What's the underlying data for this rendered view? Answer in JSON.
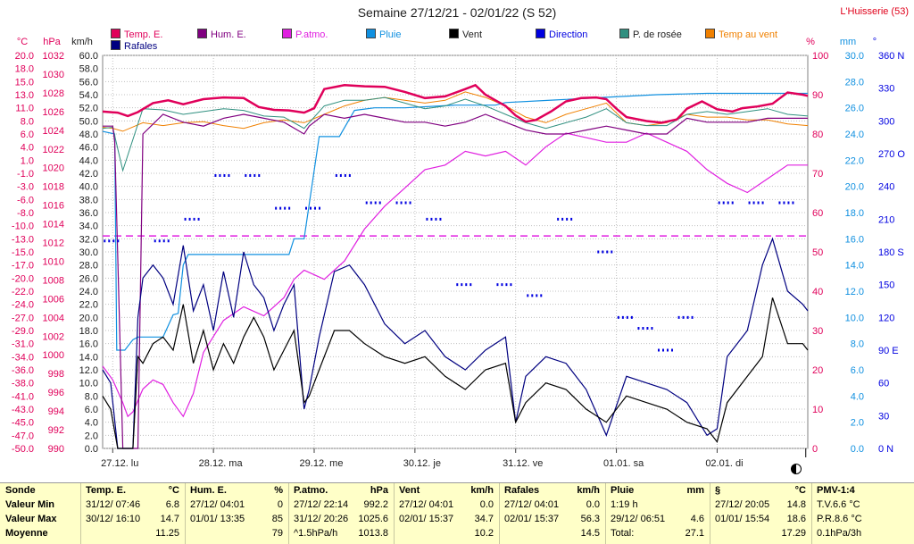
{
  "title": "Semaine 27/12/21 - 02/01/22 (S 52)",
  "station": "L'Huisserie (53)",
  "legend": [
    {
      "label": "Temp. E.",
      "color": "#e0005a"
    },
    {
      "label": "Hum. E.",
      "color": "#800080"
    },
    {
      "label": "P.atmo.",
      "color": "#e020e0"
    },
    {
      "label": "Pluie",
      "color": "#1090e0"
    },
    {
      "label": "Vent",
      "color": "#000000"
    },
    {
      "label": "Direction",
      "color": "#0000e0"
    },
    {
      "label": "P. de rosée",
      "color": "#309080"
    },
    {
      "label": "Temp au vent",
      "color": "#f08000"
    },
    {
      "label": "Rafales",
      "color": "#000080"
    }
  ],
  "axes": {
    "temp": {
      "unit": "°C",
      "ticks": [
        "20.0",
        "18.0",
        "15.0",
        "13.0",
        "11.0",
        "8.0",
        "6.0",
        "4.0",
        "1.0",
        "-1.0",
        "-3.0",
        "-6.0",
        "-8.0",
        "-10.0",
        "-13.0",
        "-15.0",
        "-17.0",
        "-20.0",
        "-22.0",
        "-24.0",
        "-27.0",
        "-29.0",
        "-31.0",
        "-34.0",
        "-36.0",
        "-38.0",
        "-41.0",
        "-43.0",
        "-45.0",
        "-47.0",
        "-50.0"
      ]
    },
    "pressure": {
      "unit": "hPa",
      "ticks": [
        "1032",
        "1030",
        "1028",
        "1026",
        "1024",
        "1022",
        "1020",
        "1018",
        "1016",
        "1014",
        "1012",
        "1010",
        "1008",
        "1006",
        "1004",
        "1002",
        "1000",
        "998",
        "996",
        "994",
        "992",
        "990"
      ]
    },
    "wind": {
      "unit": "km/h",
      "ticks": [
        "60.0",
        "58.0",
        "56.0",
        "54.0",
        "52.0",
        "50.0",
        "48.0",
        "46.0",
        "44.0",
        "42.0",
        "40.0",
        "38.0",
        "36.0",
        "34.0",
        "32.0",
        "30.0",
        "28.0",
        "26.0",
        "24.0",
        "22.0",
        "20.0",
        "18.0",
        "16.0",
        "14.0",
        "12.0",
        "10.0",
        "8.0",
        "6.0",
        "4.0",
        "2.0",
        "0.0"
      ]
    },
    "humidity": {
      "unit": "%",
      "ticks": [
        "100",
        "90",
        "80",
        "70",
        "60",
        "50",
        "40",
        "30",
        "20",
        "10",
        "0"
      ]
    },
    "rain": {
      "unit": "mm",
      "ticks": [
        "30.0",
        "28.0",
        "26.0",
        "24.0",
        "22.0",
        "20.0",
        "18.0",
        "16.0",
        "14.0",
        "12.0",
        "10.0",
        "8.0",
        "6.0",
        "4.0",
        "2.0",
        "0.0"
      ]
    },
    "direction": {
      "unit": "°",
      "ticks": [
        "360 N",
        "330",
        "300",
        "270 O",
        "240",
        "210",
        "180 S",
        "150",
        "120",
        "90 E",
        "60",
        "30",
        "0 N"
      ]
    },
    "days": [
      "27.12. lu",
      "28.12. ma",
      "29.12. me",
      "30.12. je",
      "31.12. ve",
      "01.01. sa",
      "02.01. di"
    ]
  },
  "chart_data": {
    "type": "line",
    "x_unit": "day index (0 = 27.12. lu)",
    "x_range": [
      0,
      7
    ],
    "series": [
      {
        "name": "Temp. E.",
        "axis": "°C",
        "x": [
          0,
          0.15,
          0.25,
          0.35,
          0.5,
          0.65,
          0.8,
          1.0,
          1.2,
          1.4,
          1.55,
          1.7,
          1.85,
          2.0,
          2.1,
          2.2,
          2.4,
          2.6,
          2.8,
          3.0,
          3.2,
          3.4,
          3.6,
          3.7,
          3.8,
          3.9,
          4.0,
          4.1,
          4.2,
          4.3,
          4.45,
          4.6,
          4.75,
          4.9,
          5.0,
          5.1,
          5.2,
          5.4,
          5.55,
          5.7,
          5.8,
          5.95,
          6.1,
          6.25,
          6.35,
          6.5,
          6.65,
          6.8,
          6.95,
          7.0
        ],
        "values": [
          10.0,
          9.8,
          9.2,
          9.9,
          11.5,
          12.0,
          11.3,
          12.2,
          12.5,
          12.4,
          10.8,
          10.3,
          10.2,
          9.8,
          10.6,
          14.0,
          14.7,
          14.5,
          14.4,
          13.5,
          12.4,
          12.7,
          14.0,
          14.7,
          13.0,
          12.0,
          11.0,
          9.3,
          8.2,
          8.5,
          10.0,
          11.8,
          12.4,
          12.5,
          12.2,
          10.5,
          9.0,
          8.3,
          8.0,
          8.6,
          10.5,
          11.8,
          10.4,
          10.0,
          10.6,
          10.9,
          11.4,
          13.4,
          13.0,
          12.8
        ]
      },
      {
        "name": "Hum. E.",
        "axis": "%",
        "x": [
          0,
          0.1,
          0.12,
          0.2,
          0.3,
          0.35,
          0.4,
          0.6,
          0.8,
          1.0,
          1.2,
          1.4,
          1.6,
          1.8,
          2.0,
          2.05,
          2.2,
          2.4,
          2.6,
          2.8,
          3.0,
          3.2,
          3.4,
          3.6,
          3.8,
          4.0,
          4.2,
          4.4,
          4.6,
          4.8,
          5.0,
          5.2,
          5.4,
          5.6,
          5.8,
          6.0,
          6.2,
          6.4,
          6.6,
          6.8,
          7.0
        ],
        "values": [
          82,
          82,
          78,
          0,
          0,
          0,
          80,
          85,
          83,
          82,
          84,
          85,
          84,
          83,
          80,
          82,
          85,
          84,
          85,
          84,
          83,
          83,
          82,
          83,
          85,
          83,
          81,
          80,
          80,
          81,
          82,
          81,
          80,
          80,
          84,
          83,
          83,
          83,
          84,
          84,
          84
        ]
      },
      {
        "name": "P.atmo.",
        "axis": "hPa",
        "x": [
          0,
          0.1,
          0.2,
          0.25,
          0.3,
          0.4,
          0.5,
          0.6,
          0.7,
          0.8,
          0.9,
          1.0,
          1.2,
          1.4,
          1.6,
          1.8,
          1.9,
          2.0,
          2.1,
          2.2,
          2.4,
          2.6,
          2.8,
          3.0,
          3.2,
          3.4,
          3.6,
          3.8,
          4.0,
          4.2,
          4.4,
          4.6,
          4.8,
          5.0,
          5.2,
          5.4,
          5.5,
          5.6,
          5.8,
          6.0,
          6.2,
          6.4,
          6.6,
          6.8,
          7.0
        ],
        "values": [
          999.0,
          997.5,
          995.0,
          993.5,
          994.0,
          996.5,
          997.5,
          997.0,
          995.0,
          993.5,
          996.0,
          1000.5,
          1004.0,
          1005.5,
          1004.5,
          1006.5,
          1008.5,
          1009.5,
          1009.0,
          1008.5,
          1010.5,
          1014.0,
          1016.5,
          1018.5,
          1020.5,
          1021.0,
          1022.5,
          1022.0,
          1022.5,
          1021.0,
          1023.0,
          1024.5,
          1024.0,
          1023.5,
          1023.5,
          1024.5,
          1024.0,
          1023.5,
          1022.5,
          1020.5,
          1019.0,
          1018.0,
          1019.5,
          1021.0,
          1021.0
        ]
      },
      {
        "name": "Pluie",
        "axis": "mm",
        "x": [
          0,
          0.12,
          0.14,
          0.22,
          0.3,
          0.35,
          0.45,
          0.6,
          0.7,
          0.75,
          0.8,
          0.85,
          1.0,
          1.2,
          1.5,
          1.85,
          1.9,
          1.95,
          2.0,
          2.15,
          2.35,
          2.5,
          2.7,
          3.0,
          3.5,
          3.9,
          4.0,
          4.5,
          5.0,
          5.5,
          6.0,
          6.5,
          7.0
        ],
        "values": [
          24.2,
          24.0,
          7.5,
          7.5,
          8.3,
          8.5,
          8.5,
          8.5,
          10.2,
          10.3,
          14.0,
          14.8,
          14.8,
          14.8,
          14.8,
          14.8,
          16.0,
          16.0,
          16.0,
          23.8,
          23.8,
          25.8,
          26.0,
          26.0,
          26.2,
          26.2,
          26.4,
          26.6,
          26.8,
          27.0,
          27.1,
          27.1,
          27.1
        ]
      },
      {
        "name": "Vent",
        "axis": "km/h",
        "x": [
          0,
          0.08,
          0.15,
          0.2,
          0.25,
          0.3,
          0.35,
          0.4,
          0.5,
          0.6,
          0.7,
          0.8,
          0.9,
          1.0,
          1.1,
          1.2,
          1.3,
          1.4,
          1.5,
          1.6,
          1.7,
          1.8,
          1.9,
          2.0,
          2.05,
          2.15,
          2.3,
          2.45,
          2.6,
          2.8,
          3.0,
          3.2,
          3.4,
          3.6,
          3.8,
          4.0,
          4.1,
          4.2,
          4.4,
          4.6,
          4.8,
          5.0,
          5.2,
          5.4,
          5.6,
          5.8,
          6.0,
          6.1,
          6.2,
          6.4,
          6.55,
          6.65,
          6.8,
          6.95,
          7.0
        ],
        "values": [
          8,
          6,
          0,
          0,
          0,
          0,
          14,
          13,
          16,
          17,
          15,
          22,
          13,
          18,
          12,
          16,
          13,
          17,
          20,
          17,
          12,
          15,
          18,
          7,
          8,
          12,
          18,
          18,
          16,
          14,
          13,
          14,
          11,
          9,
          12,
          13,
          4,
          7,
          10,
          9,
          6,
          4,
          8,
          7,
          6,
          4,
          3,
          1,
          7,
          11,
          14,
          23,
          16,
          16,
          15
        ]
      },
      {
        "name": "Rafales",
        "axis": "km/h",
        "x": [
          0,
          0.08,
          0.15,
          0.2,
          0.25,
          0.3,
          0.35,
          0.4,
          0.5,
          0.6,
          0.7,
          0.8,
          0.9,
          1.0,
          1.1,
          1.2,
          1.3,
          1.4,
          1.5,
          1.6,
          1.7,
          1.8,
          1.9,
          2.0,
          2.05,
          2.15,
          2.3,
          2.45,
          2.6,
          2.8,
          3.0,
          3.2,
          3.4,
          3.6,
          3.8,
          4.0,
          4.1,
          4.2,
          4.4,
          4.6,
          4.8,
          5.0,
          5.2,
          5.4,
          5.6,
          5.8,
          6.0,
          6.1,
          6.2,
          6.4,
          6.55,
          6.65,
          6.8,
          6.95,
          7.0
        ],
        "values": [
          12,
          10,
          0,
          0,
          0,
          0,
          20,
          26,
          28,
          26,
          22,
          31,
          21,
          25,
          18,
          27,
          20,
          30,
          25,
          23,
          18,
          22,
          25,
          6,
          9,
          17,
          27,
          28,
          25,
          19,
          16,
          18,
          14,
          12,
          15,
          17,
          4,
          11,
          14,
          13,
          9,
          2,
          11,
          10,
          9,
          7,
          2,
          3,
          14,
          18,
          28,
          32,
          24,
          22,
          21
        ]
      },
      {
        "name": "P. de rosée",
        "axis": "°C",
        "x": [
          0,
          0.1,
          0.2,
          0.4,
          0.6,
          0.8,
          1.0,
          1.2,
          1.4,
          1.6,
          1.8,
          2.0,
          2.2,
          2.4,
          2.6,
          2.8,
          3.0,
          3.2,
          3.4,
          3.6,
          3.8,
          4.0,
          4.2,
          4.4,
          4.6,
          4.8,
          5.0,
          5.2,
          5.4,
          5.6,
          5.8,
          6.0,
          6.2,
          6.4,
          6.6,
          6.8,
          7.0
        ],
        "values": [
          7.0,
          7.2,
          -0.5,
          10.5,
          10.3,
          9.5,
          10.0,
          10.5,
          10.2,
          9.2,
          9.0,
          7.0,
          11.0,
          12.0,
          12.0,
          12.5,
          11.5,
          10.5,
          11.0,
          12.2,
          11.0,
          9.5,
          8.0,
          7.0,
          8.0,
          9.0,
          10.5,
          8.0,
          7.5,
          7.5,
          9.5,
          10.0,
          9.5,
          10.0,
          10.5,
          9.5,
          9.2
        ]
      },
      {
        "name": "Temp au vent",
        "axis": "°C",
        "x": [
          0,
          0.1,
          0.2,
          0.4,
          0.6,
          0.8,
          1.0,
          1.2,
          1.4,
          1.6,
          1.8,
          2.0,
          2.2,
          2.4,
          2.6,
          2.8,
          3.0,
          3.2,
          3.4,
          3.6,
          3.8,
          4.0,
          4.2,
          4.4,
          4.6,
          4.8,
          5.0,
          5.2,
          5.4,
          5.6,
          5.8,
          6.0,
          6.2,
          6.4,
          6.6,
          6.8,
          7.0
        ],
        "values": [
          7.2,
          7.0,
          6.5,
          8.0,
          7.5,
          8.0,
          8.2,
          7.5,
          7.0,
          8.0,
          8.5,
          8.0,
          9.5,
          11.0,
          12.0,
          12.5,
          12.0,
          11.5,
          12.0,
          13.5,
          12.5,
          11.0,
          9.0,
          8.0,
          9.5,
          10.5,
          11.5,
          8.0,
          7.5,
          8.0,
          9.5,
          9.0,
          9.0,
          8.5,
          8.5,
          7.8,
          7.5
        ]
      },
      {
        "name": "Direction",
        "axis": "°",
        "x": [
          0.1,
          0.6,
          0.9,
          1.2,
          1.5,
          1.8,
          2.1,
          2.4,
          2.7,
          3.0,
          3.3,
          3.6,
          4.0,
          4.3,
          4.6,
          5.0,
          5.2,
          5.4,
          5.6,
          5.8,
          6.2,
          6.5,
          6.8
        ],
        "values": [
          190,
          190,
          210,
          250,
          250,
          220,
          220,
          250,
          225,
          225,
          210,
          150,
          150,
          140,
          210,
          180,
          120,
          110,
          90,
          120,
          225,
          225,
          225
        ]
      }
    ],
    "references": [
      {
        "name": "Référence",
        "axis": "hPa",
        "value": 1013.25,
        "style": "dashed"
      }
    ]
  },
  "stats": {
    "row_labels": [
      "Sonde",
      "Valeur Min",
      "Valeur Max",
      "Moyenne"
    ],
    "columns": [
      {
        "title": "Temp. E.",
        "unit": "°C",
        "rows": [
          {
            "time": "31/12/ 07:46",
            "value": "6.8"
          },
          {
            "time": "30/12/ 16:10",
            "value": "14.7"
          },
          {
            "time": "",
            "value": "11.25"
          }
        ]
      },
      {
        "title": "Hum. E.",
        "unit": "%",
        "rows": [
          {
            "time": "27/12/ 04:01",
            "value": "0"
          },
          {
            "time": "01/01/ 13:35",
            "value": "85"
          },
          {
            "time": "",
            "value": "79"
          }
        ]
      },
      {
        "title": "P.atmo.",
        "unit": "hPa",
        "rows": [
          {
            "time": "27/12/ 22:14",
            "value": "992.2"
          },
          {
            "time": "31/12/ 20:26",
            "value": "1025.6"
          },
          {
            "time": "^1.5hPa/h",
            "value": "1013.8"
          }
        ]
      },
      {
        "title": "Vent",
        "unit": "km/h",
        "rows": [
          {
            "time": "27/12/ 04:01",
            "value": "0.0"
          },
          {
            "time": "02/01/ 15:37",
            "value": "34.7"
          },
          {
            "time": "",
            "value": "10.2"
          }
        ]
      },
      {
        "title": "Rafales",
        "unit": "km/h",
        "rows": [
          {
            "time": "27/12/ 04:01",
            "value": "0.0"
          },
          {
            "time": "02/01/ 15:37",
            "value": "56.3"
          },
          {
            "time": "",
            "value": "14.5"
          }
        ]
      },
      {
        "title": "Pluie",
        "unit": "mm",
        "rows": [
          {
            "time": "1:19 h",
            "value": ""
          },
          {
            "time": "29/12/ 06:51",
            "value": "4.6"
          },
          {
            "time": "Total:",
            "value": "27.1"
          }
        ]
      },
      {
        "title": "§",
        "unit": "°C",
        "rows": [
          {
            "time": "27/12/ 20:05",
            "value": "14.8"
          },
          {
            "time": "01/01/ 15:54",
            "value": "18.6"
          },
          {
            "time": "",
            "value": "17.29"
          }
        ]
      },
      {
        "title": "PMV-1:4",
        "unit": "",
        "rows": [
          {
            "time": "T.V.6.6 °C",
            "value": ""
          },
          {
            "time": "P.R.8.6 °C",
            "value": ""
          },
          {
            "time": "0.1hPa/3h",
            "value": ""
          }
        ]
      }
    ]
  }
}
